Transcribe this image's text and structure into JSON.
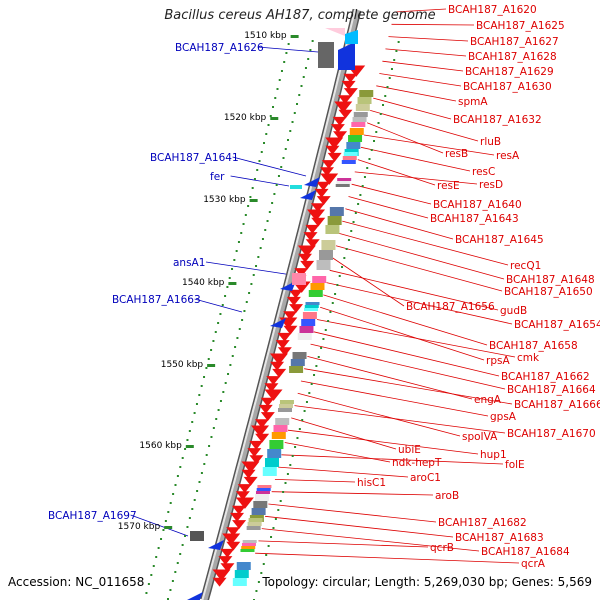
{
  "title": "Bacillus cereus AH187, complete genome",
  "footer": {
    "accession": "Accession: NC_011658",
    "summary": "Topology: circular; Length: 5,269,030 bp; Genes: 5,569"
  },
  "colors": {
    "reverse_gene": "#ee1111",
    "forward_gene": "#1133dd",
    "backbone": "#777777",
    "tick": "#2a8a2a",
    "label_right": "#dd0000",
    "label_left": "#0000bb"
  },
  "ticks": [
    "1510 kbp",
    "1520 kbp",
    "1530 kbp",
    "1540 kbp",
    "1550 kbp",
    "1560 kbp",
    "1570 kbp"
  ],
  "labels_right": [
    "BCAH187_A1620",
    "BCAH187_A1625",
    "BCAH187_A1627",
    "BCAH187_A1628",
    "BCAH187_A1629",
    "BCAH187_A1630",
    "spmA",
    "BCAH187_A1632",
    "rluB",
    "resB",
    "resA",
    "resC",
    "resE",
    "resD",
    "BCAH187_A1640",
    "BCAH187_A1643",
    "BCAH187_A1645",
    "recQ1",
    "BCAH187_A1648",
    "BCAH187_A1650",
    "BCAH187_A1656",
    "gudB",
    "BCAH187_A1654",
    "BCAH187_A1658",
    "rpsA",
    "cmk",
    "BCAH187_A1662",
    "BCAH187_A1664",
    "engA",
    "BCAH187_A1666",
    "gpsA",
    "spoIVA",
    "BCAH187_A1670",
    "ubiE",
    "hup1",
    "ndk-hepT",
    "folE",
    "aroC1",
    "hisC1",
    "aroB",
    "BCAH187_A1682",
    "BCAH187_A1683",
    "BCAH187_A1684",
    "qcrB",
    "qcrA"
  ],
  "labels_left": [
    "BCAH187_A1626",
    "BCAH187_A1641",
    "fer",
    "ansA1",
    "BCAH187_A1663",
    "BCAH187_A1697"
  ]
}
